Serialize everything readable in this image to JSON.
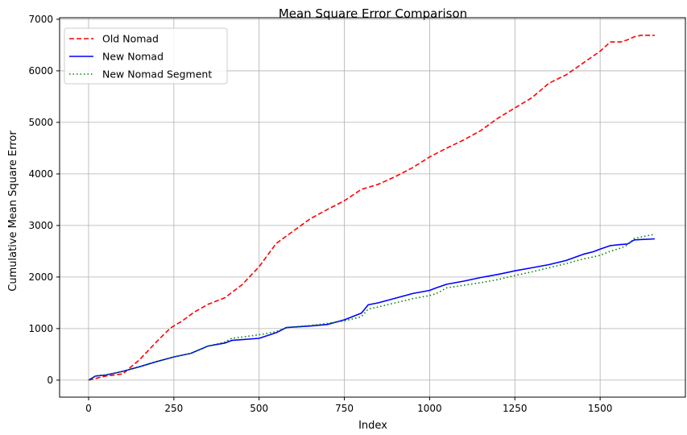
{
  "chart_data": {
    "type": "line",
    "title": "Mean Square Error Comparison",
    "xlabel": "Index",
    "ylabel": "Cumulative Mean Square Error",
    "xlim": [
      -85,
      1750
    ],
    "ylim": [
      -330,
      7030
    ],
    "x_ticks": [
      0,
      250,
      500,
      750,
      1000,
      1250,
      1500
    ],
    "y_ticks": [
      0,
      1000,
      2000,
      3000,
      4000,
      5000,
      6000,
      7000
    ],
    "grid": true,
    "legend_position": "top-left",
    "series": [
      {
        "name": "Old Nomad",
        "color": "#ff0000",
        "style": "dashed",
        "x": [
          0,
          50,
          100,
          150,
          200,
          240,
          275,
          310,
          350,
          400,
          450,
          500,
          550,
          600,
          650,
          700,
          750,
          800,
          850,
          900,
          950,
          1000,
          1050,
          1100,
          1150,
          1200,
          1250,
          1300,
          1350,
          1400,
          1450,
          1500,
          1530,
          1560,
          1580,
          1600,
          1620,
          1660
        ],
        "values": [
          0,
          80,
          120,
          400,
          750,
          1010,
          1150,
          1320,
          1470,
          1600,
          1850,
          2200,
          2650,
          2890,
          3130,
          3310,
          3480,
          3700,
          3800,
          3950,
          4120,
          4330,
          4500,
          4660,
          4840,
          5080,
          5280,
          5480,
          5760,
          5920,
          6150,
          6380,
          6560,
          6560,
          6600,
          6660,
          6690,
          6690
        ]
      },
      {
        "name": "New Nomad",
        "color": "#0000ff",
        "style": "solid",
        "x": [
          0,
          20,
          50,
          80,
          100,
          150,
          200,
          250,
          300,
          350,
          400,
          420,
          500,
          550,
          580,
          650,
          700,
          750,
          800,
          820,
          850,
          900,
          950,
          1000,
          1020,
          1050,
          1100,
          1150,
          1200,
          1250,
          1300,
          1350,
          1400,
          1450,
          1480,
          1500,
          1530,
          1560,
          1580,
          1600,
          1660
        ],
        "values": [
          0,
          80,
          100,
          140,
          170,
          260,
          360,
          450,
          520,
          660,
          720,
          770,
          810,
          920,
          1020,
          1050,
          1080,
          1170,
          1300,
          1460,
          1500,
          1590,
          1680,
          1740,
          1790,
          1860,
          1920,
          1990,
          2050,
          2120,
          2180,
          2240,
          2320,
          2440,
          2490,
          2540,
          2610,
          2630,
          2640,
          2720,
          2740
        ]
      },
      {
        "name": "New Nomad Segment",
        "color": "#008000",
        "style": "dotted",
        "x": [
          0,
          20,
          50,
          80,
          100,
          150,
          200,
          250,
          300,
          350,
          400,
          420,
          500,
          550,
          580,
          650,
          700,
          750,
          800,
          820,
          850,
          900,
          950,
          1000,
          1020,
          1050,
          1100,
          1150,
          1200,
          1250,
          1300,
          1350,
          1400,
          1450,
          1480,
          1500,
          1530,
          1560,
          1580,
          1600,
          1660
        ],
        "values": [
          0,
          80,
          100,
          140,
          170,
          260,
          360,
          450,
          520,
          660,
          740,
          810,
          880,
          940,
          1020,
          1060,
          1100,
          1150,
          1230,
          1380,
          1420,
          1500,
          1580,
          1640,
          1680,
          1790,
          1840,
          1890,
          1950,
          2030,
          2100,
          2180,
          2260,
          2350,
          2390,
          2420,
          2500,
          2560,
          2620,
          2750,
          2830
        ]
      }
    ]
  }
}
